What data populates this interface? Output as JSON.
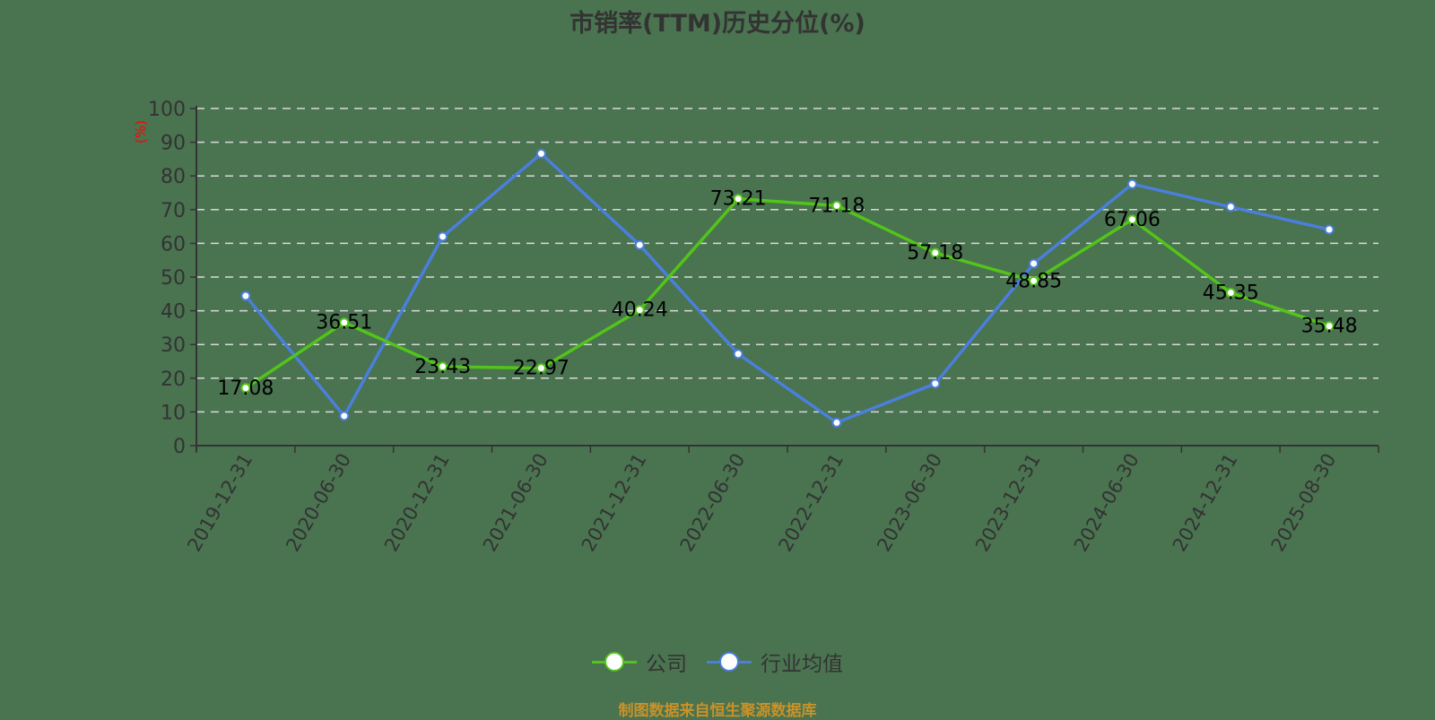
{
  "title": "市销率(TTM)历史分位(%)",
  "y_unit_label": "(%)",
  "legend": {
    "items": [
      {
        "label": "公司",
        "color": "#52c41a"
      },
      {
        "label": "行业均值",
        "color": "#4a7fdc"
      }
    ]
  },
  "footer": "制图数据来自恒生聚源数据库",
  "colors": {
    "background": "#4a7350",
    "axis": "#333333",
    "grid": "#d9d9d9",
    "unit_label": "#ff0000",
    "company": "#52c41a",
    "industry": "#4a7fdc",
    "footer": "#c8922a"
  },
  "chart_data": {
    "type": "line",
    "title": "市销率(TTM)历史分位(%)",
    "xlabel": "",
    "ylabel": "(%)",
    "ylim": [
      0,
      100
    ],
    "yticks": [
      0,
      10,
      20,
      30,
      40,
      50,
      60,
      70,
      80,
      90,
      100
    ],
    "grid": "horizontal dashed",
    "legend_position": "bottom",
    "categories": [
      "2019-12-31",
      "2020-06-30",
      "2020-12-31",
      "2021-06-30",
      "2021-12-31",
      "2022-06-30",
      "2022-12-31",
      "2023-06-30",
      "2023-12-31",
      "2024-06-30",
      "2024-12-31",
      "2025-08-30"
    ],
    "series": [
      {
        "name": "公司",
        "values": [
          17.08,
          36.51,
          23.43,
          22.97,
          40.24,
          73.21,
          71.18,
          57.18,
          48.85,
          67.06,
          45.35,
          35.48
        ],
        "labels_shown": true
      },
      {
        "name": "行业均值",
        "values": [
          44.4,
          8.8,
          62.0,
          86.6,
          59.5,
          27.2,
          6.8,
          18.4,
          54.0,
          77.6,
          70.8,
          64.1
        ],
        "labels_shown": false
      }
    ]
  }
}
